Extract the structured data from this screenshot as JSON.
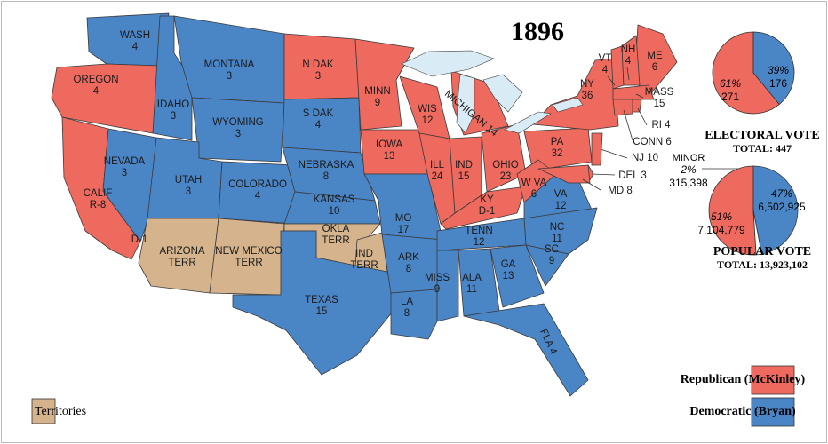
{
  "title": "1896",
  "states": [
    {
      "lines": [
        "WASH",
        "4"
      ]
    },
    {
      "lines": [
        "OREGON",
        "4"
      ]
    },
    {
      "lines": [
        "CALIF",
        "R-8"
      ]
    },
    {
      "lines": [
        "NEVADA",
        "3"
      ]
    },
    {
      "lines": [
        "IDAHO",
        "3"
      ]
    },
    {
      "lines": [
        "MONTANA",
        "3"
      ]
    },
    {
      "lines": [
        "WYOMING",
        "3"
      ]
    },
    {
      "lines": [
        "UTAH",
        "3"
      ]
    },
    {
      "lines": [
        "COLORADO",
        "4"
      ]
    },
    {
      "lines": [
        "ARIZONA",
        "TERR"
      ]
    },
    {
      "lines": [
        "NEW MEXICO",
        "TERR"
      ]
    },
    {
      "lines": [
        "N DAK",
        "3"
      ]
    },
    {
      "lines": [
        "S DAK",
        "4"
      ]
    },
    {
      "lines": [
        "NEBRASKA",
        "8"
      ]
    },
    {
      "lines": [
        "KANSAS",
        "10"
      ]
    },
    {
      "lines": [
        "OKLA",
        "TERR"
      ]
    },
    {
      "lines": [
        "IND",
        "TERR"
      ]
    },
    {
      "lines": [
        "TEXAS",
        "15"
      ]
    },
    {
      "lines": [
        "MINN",
        "9"
      ]
    },
    {
      "lines": [
        "IOWA",
        "13"
      ]
    },
    {
      "lines": [
        "MO",
        "17"
      ]
    },
    {
      "lines": [
        "ARK",
        "8"
      ]
    },
    {
      "lines": [
        "LA",
        "8"
      ]
    },
    {
      "lines": [
        "WIS",
        "12"
      ]
    },
    {
      "lines": [
        "MICHIGAN 14"
      ]
    },
    {
      "lines": [
        "ILL",
        "24"
      ]
    },
    {
      "lines": [
        "IND",
        "15"
      ]
    },
    {
      "lines": [
        "OHIO",
        "23"
      ]
    },
    {
      "lines": [
        "KY",
        "D-1"
      ]
    },
    {
      "lines": [
        "PA",
        "32"
      ]
    },
    {
      "lines": [
        "NY",
        "36"
      ]
    },
    {
      "lines": [
        "W VA",
        "6"
      ]
    },
    {
      "lines": [
        "VA",
        "12"
      ]
    },
    {
      "lines": [
        "NC",
        "11"
      ]
    },
    {
      "lines": [
        "TENN",
        "12"
      ]
    },
    {
      "lines": [
        "MISS",
        "9"
      ]
    },
    {
      "lines": [
        "ALA",
        "11"
      ]
    },
    {
      "lines": [
        "GA",
        "13"
      ]
    },
    {
      "lines": [
        "SC",
        "9"
      ]
    },
    {
      "lines": [
        "FLA 4"
      ]
    },
    {
      "lines": [
        "ME",
        "6"
      ]
    },
    {
      "lines": [
        "VT",
        "4"
      ]
    },
    {
      "lines": [
        "NH",
        "4"
      ]
    },
    {
      "lines": [
        "MASS",
        "15"
      ]
    },
    {
      "lines": [
        "RI 4"
      ]
    },
    {
      "lines": [
        "CONN 6"
      ]
    },
    {
      "lines": [
        "NJ 10"
      ]
    },
    {
      "lines": [
        "DEL 3"
      ]
    },
    {
      "lines": [
        "MD 8"
      ]
    },
    {
      "lines": [
        "D-1"
      ]
    }
  ],
  "legend": [
    {
      "label": "Republican (McKinley)",
      "color": "#ef6a5e"
    },
    {
      "label": "Democratic (Bryan)",
      "color": "#4a85c6"
    },
    {
      "label": "Territories",
      "color": "#d5b48d"
    }
  ],
  "chart_data": [
    {
      "type": "pie",
      "title": "ELECTORAL VOTE",
      "subtitle": "TOTAL:  447",
      "values": [
        61,
        39
      ],
      "value_labels": [
        "61%",
        "39%"
      ],
      "votes": [
        271,
        176
      ],
      "colors": [
        "#ef6a5e",
        "#4a85c6"
      ]
    },
    {
      "type": "pie",
      "title": "POPULAR VOTE",
      "subtitle": "TOTAL:  13,923,102",
      "categories": [
        null,
        null,
        "MINOR"
      ],
      "values": [
        51,
        47,
        2
      ],
      "value_labels": [
        "51%",
        "47%",
        "2%"
      ],
      "votes": [
        "7,104,779",
        "6,502,925",
        "315,398"
      ],
      "colors": [
        "#ef6a5e",
        "#4a85c6",
        "#ffffff"
      ]
    }
  ]
}
